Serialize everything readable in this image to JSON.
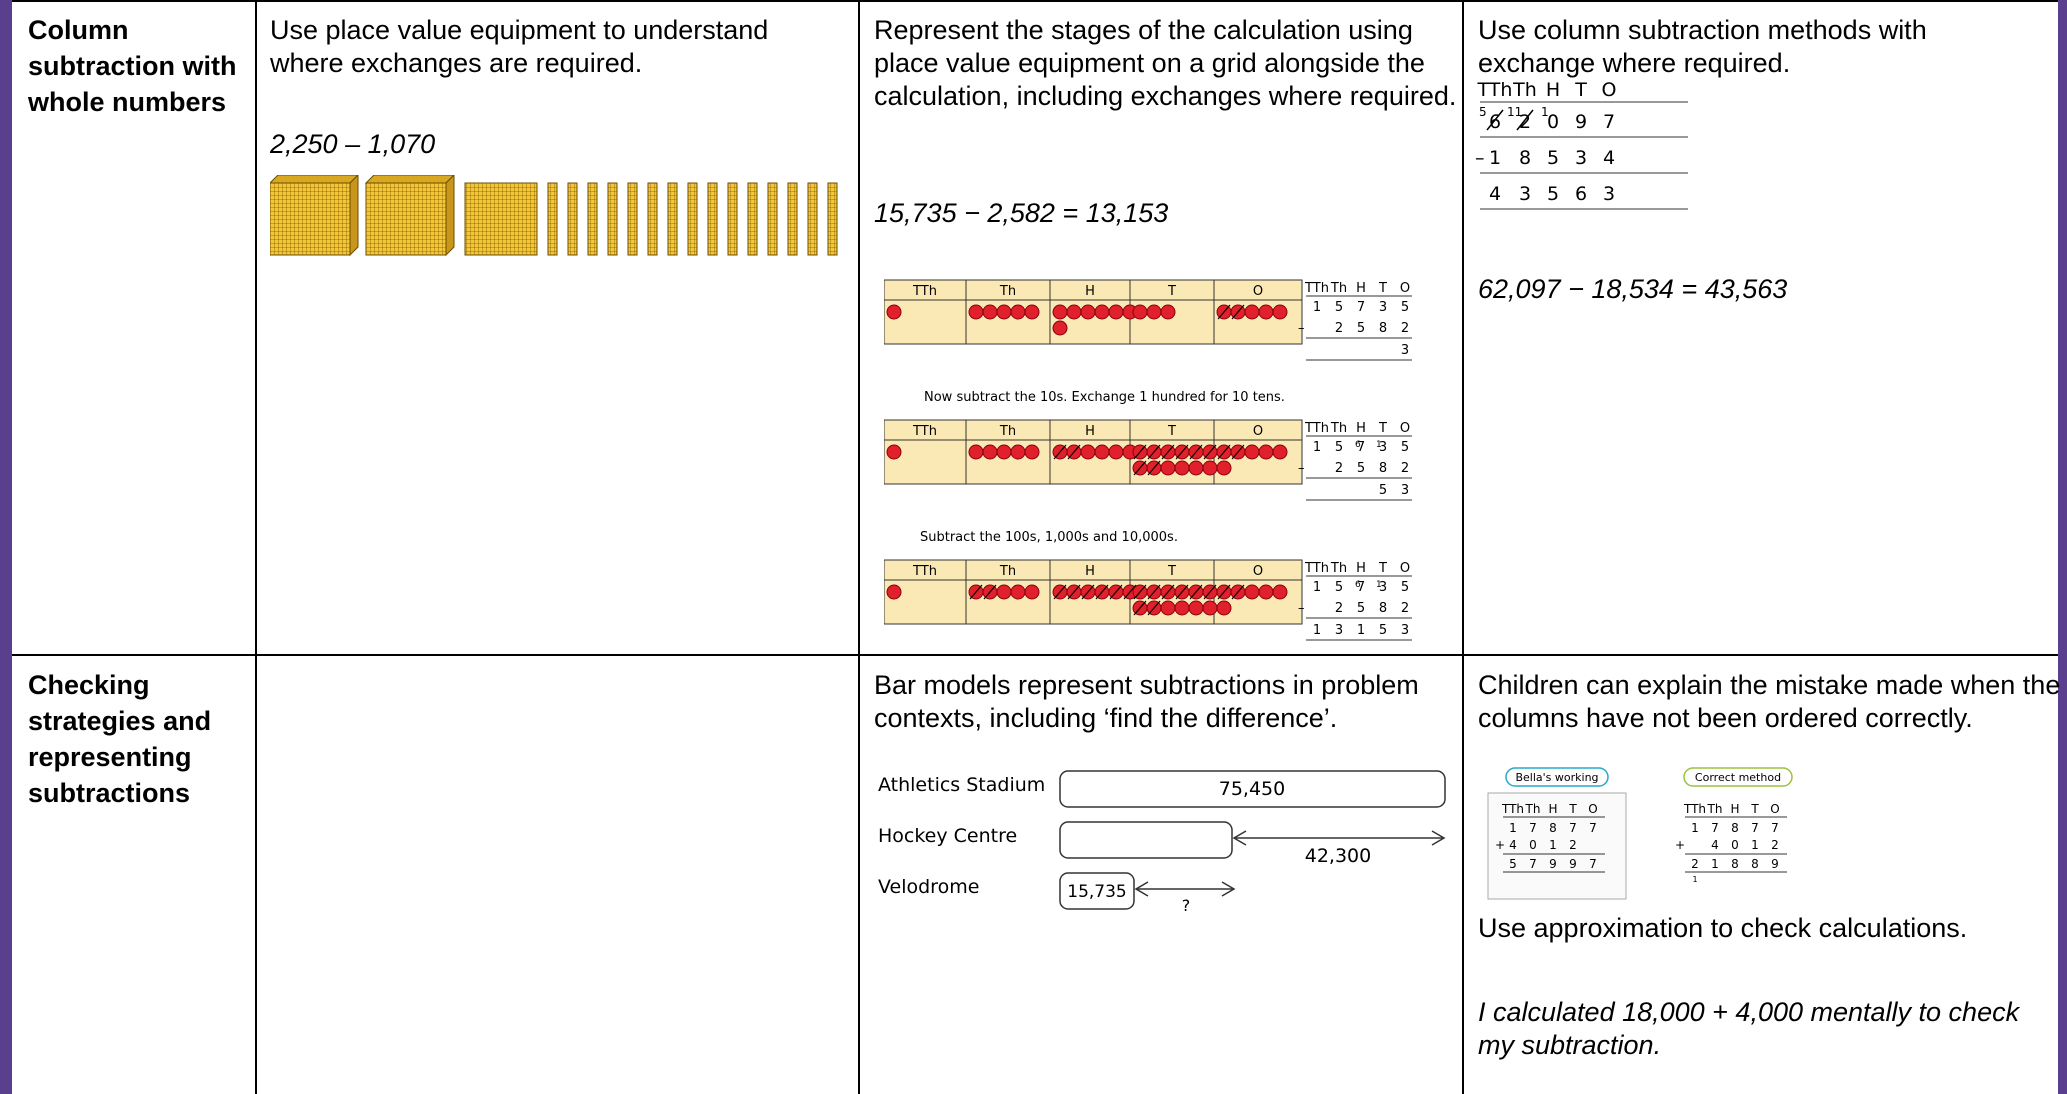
{
  "row1": {
    "header": "Column subtraction with whole numbers",
    "col2": {
      "text": "Use place value equipment to understand where exchanges are required.",
      "example": "2,250 – 1,070"
    },
    "col3": {
      "text": "Represent the stages of the calculation using place value equipment on a grid alongside the calculation, including exchanges where required.",
      "example": "15,735 − 2,582 = 13,153",
      "grid_headers": [
        "TTh",
        "Th",
        "H",
        "T",
        "O"
      ],
      "col_headers": [
        "TTh",
        "Th",
        "H",
        "T",
        "O"
      ],
      "step2_caption": "Now subtract the 10s. Exchange 1 hundred for 10 tens.",
      "step3_caption": "Subtract the 100s, 1,000s and 10,000s.",
      "minuend_digits": [
        "1",
        "5",
        "7",
        "3",
        "5"
      ],
      "subtrahend_digits": [
        "2",
        "5",
        "8",
        "2"
      ],
      "minus": "–",
      "step1_answer": [
        "3"
      ],
      "step2_answer": [
        "5",
        "3"
      ],
      "step3_answer": [
        "1",
        "3",
        "1",
        "5",
        "3"
      ],
      "exchange_hundreds": "6",
      "exchange_tens": "1"
    },
    "col4": {
      "text": "Use column subtraction methods with exchange where required.",
      "col_headers": [
        "TTh",
        "Th",
        "H",
        "T",
        "O"
      ],
      "row_top": [
        "6",
        "2",
        "0",
        "9",
        "7"
      ],
      "exchange_marks": [
        "5",
        "11",
        "1"
      ],
      "minus": "–",
      "row_sub": [
        "1",
        "8",
        "5",
        "3",
        "4"
      ],
      "row_ans": [
        "4",
        "3",
        "5",
        "6",
        "3"
      ],
      "example": "62,097 − 18,534 = 43,563"
    }
  },
  "row2": {
    "header": "Checking strategies and representing subtractions",
    "col3": {
      "text": "Bar models represent subtractions in problem contexts, including ‘find the difference’.",
      "bars": [
        {
          "label": "Athletics Stadium",
          "value": "75,450"
        },
        {
          "label": "Hockey Centre",
          "value": "42,300"
        },
        {
          "label": "Velodrome",
          "value": "15,735"
        }
      ],
      "unknown": "?"
    },
    "col4": {
      "text": "Children can explain the mistake made when the columns have not been ordered correctly.",
      "tag_bella": "Bella's working",
      "tag_correct": "Correct method",
      "col_headers": [
        "TTh",
        "Th",
        "H",
        "T",
        "O"
      ],
      "bella_row1": [
        "1",
        "7",
        "8",
        "7",
        "7"
      ],
      "bella_row2": [
        "4",
        "0",
        "1",
        "2"
      ],
      "bella_ans": [
        "5",
        "7",
        "9",
        "9",
        "7"
      ],
      "correct_row1": [
        "1",
        "7",
        "8",
        "7",
        "7"
      ],
      "correct_row2": [
        "4",
        "0",
        "1",
        "2"
      ],
      "correct_ans": [
        "2",
        "1",
        "8",
        "8",
        "9"
      ],
      "plus": "+",
      "carry": "1",
      "text2": "Use approximation to check calculations.",
      "text3": "I calculated 18,000 + 4,000 mentally to check my subtraction."
    }
  }
}
